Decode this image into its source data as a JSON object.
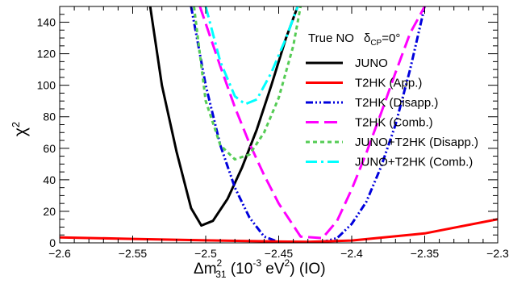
{
  "chart_data": {
    "type": "line",
    "xlabel": {
      "prefix": "Δm",
      "sup": "2",
      "sub": "31",
      "unit_open": " (10",
      "unit_exp": "-3",
      "unit_mid": " eV",
      "unit_exp2": "2",
      "unit_close": ") (IO)"
    },
    "ylabel": {
      "main": "χ",
      "sup": "2"
    },
    "xlim": [
      -2.6,
      -2.3
    ],
    "ylim": [
      0,
      150
    ],
    "x_ticks": [
      -2.6,
      -2.55,
      -2.5,
      -2.45,
      -2.4,
      -2.35,
      -2.3
    ],
    "x_tick_labels": [
      "−2.6",
      "−2.55",
      "−2.5",
      "−2.45",
      "−2.4",
      "−2.35",
      "−2.3"
    ],
    "y_ticks": [
      0,
      20,
      40,
      60,
      80,
      100,
      120,
      140
    ],
    "y_tick_labels": [
      "0",
      "20",
      "40",
      "60",
      "80",
      "100",
      "120",
      "140"
    ],
    "annotation": {
      "text": "True NO",
      "delta": "δ",
      "sub": "CP",
      "value": "=0°"
    },
    "legend_position": "top-right",
    "series": [
      {
        "name": "JUNO",
        "color": "#000000",
        "dash": "solid",
        "x": [
          -2.538,
          -2.53,
          -2.52,
          -2.51,
          -2.503,
          -2.495,
          -2.485,
          -2.475,
          -2.465,
          -2.455,
          -2.445,
          -2.437
        ],
        "y": [
          150,
          100,
          58,
          22,
          11,
          14,
          28,
          48,
          72,
          100,
          130,
          150
        ]
      },
      {
        "name": "T2HK (App.)",
        "color": "#ff0000",
        "dash": "solid",
        "x": [
          -2.6,
          -2.55,
          -2.5,
          -2.45,
          -2.43,
          -2.4,
          -2.35,
          -2.3
        ],
        "y": [
          3.5,
          2.5,
          1.6,
          0.8,
          0.6,
          1.5,
          6,
          15
        ]
      },
      {
        "name": "T2HK (Disapp.)",
        "color": "#0000dd",
        "dash": "dashdotdot",
        "x": [
          -2.51,
          -2.5,
          -2.49,
          -2.48,
          -2.47,
          -2.46,
          -2.45,
          -2.44,
          -2.43,
          -2.42,
          -2.41,
          -2.4,
          -2.39,
          -2.38,
          -2.37,
          -2.36,
          -2.35
        ],
        "y": [
          150,
          100,
          62,
          35,
          16,
          4,
          0.5,
          0.2,
          0.1,
          0.5,
          3,
          12,
          26,
          48,
          75,
          110,
          150
        ]
      },
      {
        "name": "T2HK (Comb.)",
        "color": "#ff00ff",
        "dash": "longdash",
        "x": [
          -2.504,
          -2.49,
          -2.48,
          -2.47,
          -2.46,
          -2.45,
          -2.44,
          -2.435,
          -2.42,
          -2.41,
          -2.4,
          -2.39,
          -2.38,
          -2.37,
          -2.36,
          -2.35
        ],
        "y": [
          150,
          112,
          86,
          63,
          43,
          25,
          11,
          4,
          3,
          14,
          34,
          57,
          82,
          108,
          133,
          150
        ]
      },
      {
        "name": "JUNO+T2HK (Disapp.)",
        "color": "#55cc55",
        "dash": "shortdash",
        "x": [
          -2.508,
          -2.5,
          -2.49,
          -2.48,
          -2.47,
          -2.46,
          -2.45,
          -2.44,
          -2.435
        ],
        "y": [
          150,
          90,
          62,
          53,
          56,
          70,
          92,
          125,
          150
        ]
      },
      {
        "name": "JUNO+T2HK (Comb.)",
        "color": "#00ffff",
        "dash": "dashdot",
        "x": [
          -2.5,
          -2.49,
          -2.48,
          -2.473,
          -2.465,
          -2.455,
          -2.445,
          -2.437
        ],
        "y": [
          150,
          115,
          93,
          88,
          91,
          108,
          130,
          150
        ]
      }
    ]
  }
}
